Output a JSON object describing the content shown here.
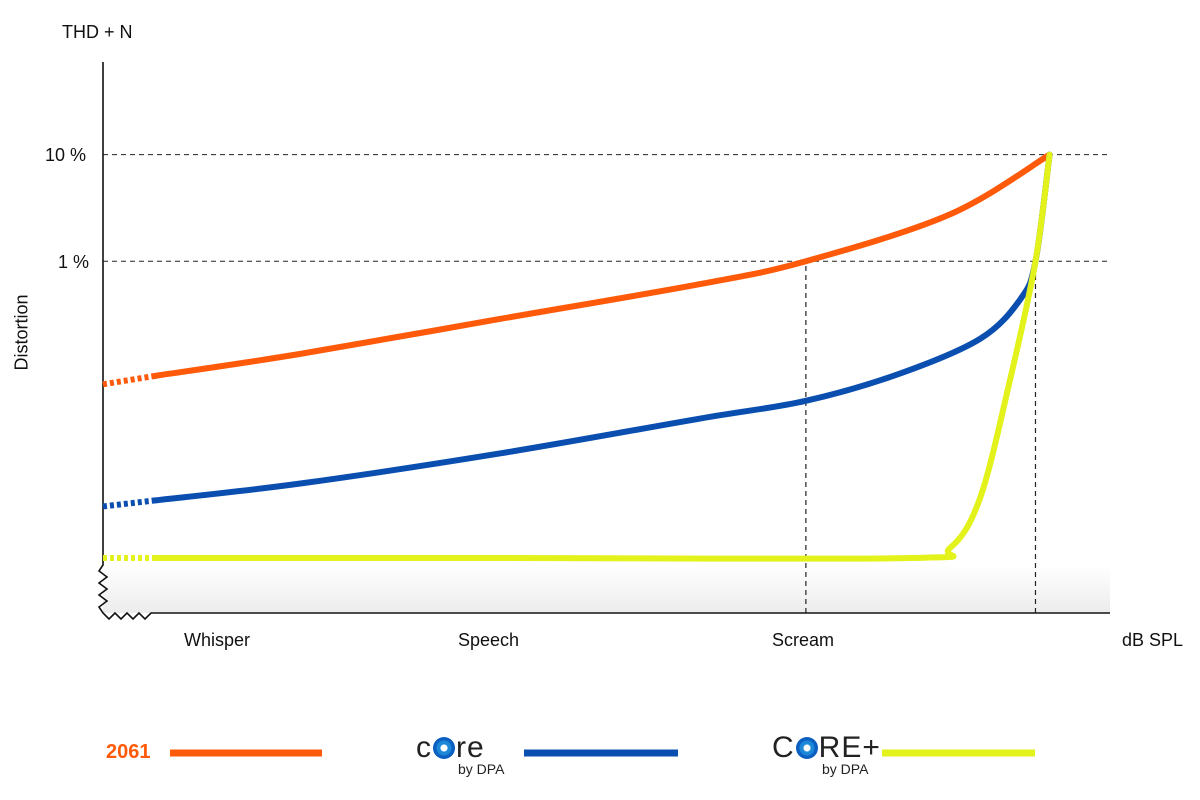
{
  "chart_data": {
    "type": "line",
    "title": "",
    "ylabel": "Distortion",
    "ylabel_top": "THD + N",
    "xlabel": "dB SPL",
    "yscale": "log",
    "ylim": [
      0.0005,
      74
    ],
    "xlim": [
      0,
      100
    ],
    "y_ticks": [
      {
        "value": 10,
        "label": "10 %"
      },
      {
        "value": 1,
        "label": "1 %"
      }
    ],
    "x_categories": [
      {
        "value": 11.8,
        "label": "Whisper"
      },
      {
        "value": 38.7,
        "label": "Speech"
      },
      {
        "value": 69.8,
        "label": "Scream"
      }
    ],
    "reference_lines": {
      "horizontal": [
        10,
        1
      ],
      "vertical": [
        69.8,
        92.6
      ]
    },
    "series": [
      {
        "name": "2061",
        "color": "#ff5a0a",
        "dotted_until": 5.2,
        "x": [
          0,
          5.2,
          19.6,
          39.4,
          59.3,
          69.8,
          84.1,
          94.0
        ],
        "y": [
          0.07,
          0.084,
          0.135,
          0.287,
          0.61,
          1,
          2.75,
          10
        ]
      },
      {
        "name": "core by DPA",
        "color": "#0a4fb0",
        "dotted_until": 5.2,
        "x": [
          0,
          5.2,
          19.6,
          39.4,
          59.3,
          69.8,
          79.1,
          87.1,
          91.1,
          92.6,
          94.0
        ],
        "y": [
          0.005,
          0.0057,
          0.0082,
          0.0157,
          0.0334,
          0.049,
          0.088,
          0.187,
          0.44,
          1,
          10
        ]
      },
      {
        "name": "CORE+ by DPA",
        "color": "#e2f21a",
        "dotted_until": 5.2,
        "x": [
          0,
          5.2,
          39.4,
          80.1,
          84.1,
          87.1,
          90.1,
          92.6,
          94.0
        ],
        "y": [
          0.00164,
          0.00164,
          0.00164,
          0.00164,
          0.00203,
          0.006,
          0.079,
          1,
          10
        ]
      }
    ]
  },
  "legend": {
    "s1": "2061",
    "s2_logo_a": "c",
    "s2_logo_b": "re",
    "s2_by": "by DPA",
    "s3_logo_a": "C",
    "s3_logo_b": "RE+",
    "s3_by": "by DPA"
  }
}
